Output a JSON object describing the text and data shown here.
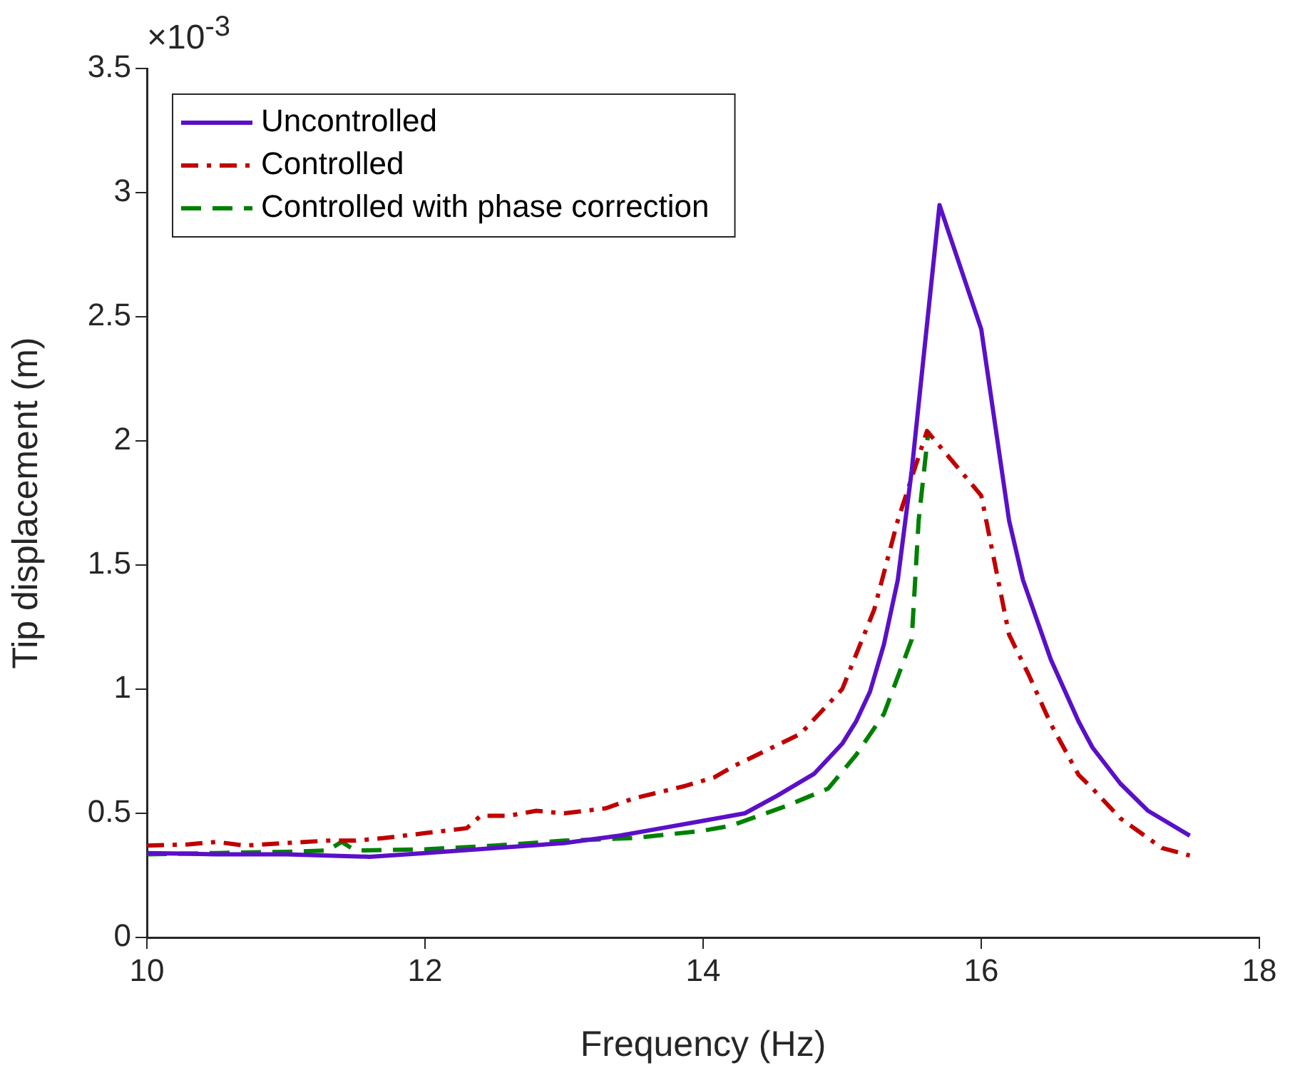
{
  "chart_data": {
    "type": "line",
    "xlabel": "Frequency (Hz)",
    "ylabel": "Tip displacement (m)",
    "annotations": [
      "×10$^{-3}$"
    ],
    "xlim": [
      10,
      18
    ],
    "xticks": [
      10,
      12,
      14,
      16,
      18
    ],
    "ylim": [
      0,
      3.5
    ],
    "yticks": [
      0,
      0.5,
      1,
      1.5,
      2,
      2.5,
      3,
      3.5
    ],
    "grid": false,
    "legend": "top left",
    "marker": "none",
    "series": [
      {
        "name": "Uncontrolled",
        "color": "#5a10c8",
        "line_style": "solid",
        "x": [
          10,
          10.5,
          11,
          11.3,
          11.6,
          12,
          12.5,
          13,
          13.4,
          13.7,
          14,
          14.3,
          14.53,
          14.8,
          15,
          15.1,
          15.2,
          15.3,
          15.4,
          15.5,
          15.7,
          16,
          16.2,
          16.3,
          16.5,
          16.7,
          16.8,
          17,
          17.2,
          17.5
        ],
        "values": [
          0.34,
          0.335,
          0.335,
          0.33,
          0.325,
          0.34,
          0.36,
          0.38,
          0.41,
          0.44,
          0.47,
          0.5,
          0.57,
          0.66,
          0.78,
          0.87,
          0.99,
          1.18,
          1.44,
          1.88,
          2.95,
          2.45,
          1.68,
          1.44,
          1.12,
          0.87,
          0.765,
          0.62,
          0.51,
          0.41
        ]
      },
      {
        "name": "Controlled",
        "color": "#c00000",
        "line_style": "dashdot",
        "x": [
          10,
          10.3,
          10.5,
          10.7,
          11,
          11.3,
          11.5,
          11.7,
          12,
          12.3,
          12.4,
          12.6,
          12.8,
          13,
          13.3,
          13.5,
          13.87,
          14.08,
          14.22,
          14.7,
          15,
          15.23,
          15.4,
          15.61,
          16,
          16.2,
          16.34,
          16.5,
          16.7,
          16.8,
          17,
          17.3,
          17.5
        ],
        "values": [
          0.37,
          0.375,
          0.385,
          0.37,
          0.38,
          0.39,
          0.39,
          0.4,
          0.42,
          0.44,
          0.49,
          0.49,
          0.51,
          0.5,
          0.52,
          0.56,
          0.61,
          0.645,
          0.69,
          0.82,
          1,
          1.32,
          1.68,
          2.04,
          1.78,
          1.22,
          1.06,
          0.86,
          0.655,
          0.6,
          0.48,
          0.36,
          0.33
        ]
      },
      {
        "name": "Controlled with phase correction",
        "color": "#008000",
        "line_style": "dashed",
        "x": [
          10,
          10.5,
          11,
          11.3,
          11.4,
          11.5,
          12,
          12.5,
          13,
          13.5,
          14,
          14.2,
          14.6,
          14.9,
          15.1,
          15.3,
          15.5,
          15.55,
          15.62
        ],
        "values": [
          0.335,
          0.34,
          0.345,
          0.35,
          0.385,
          0.35,
          0.355,
          0.37,
          0.39,
          0.4,
          0.43,
          0.45,
          0.53,
          0.6,
          0.735,
          0.9,
          1.2,
          1.68,
          2.04
        ]
      }
    ]
  }
}
